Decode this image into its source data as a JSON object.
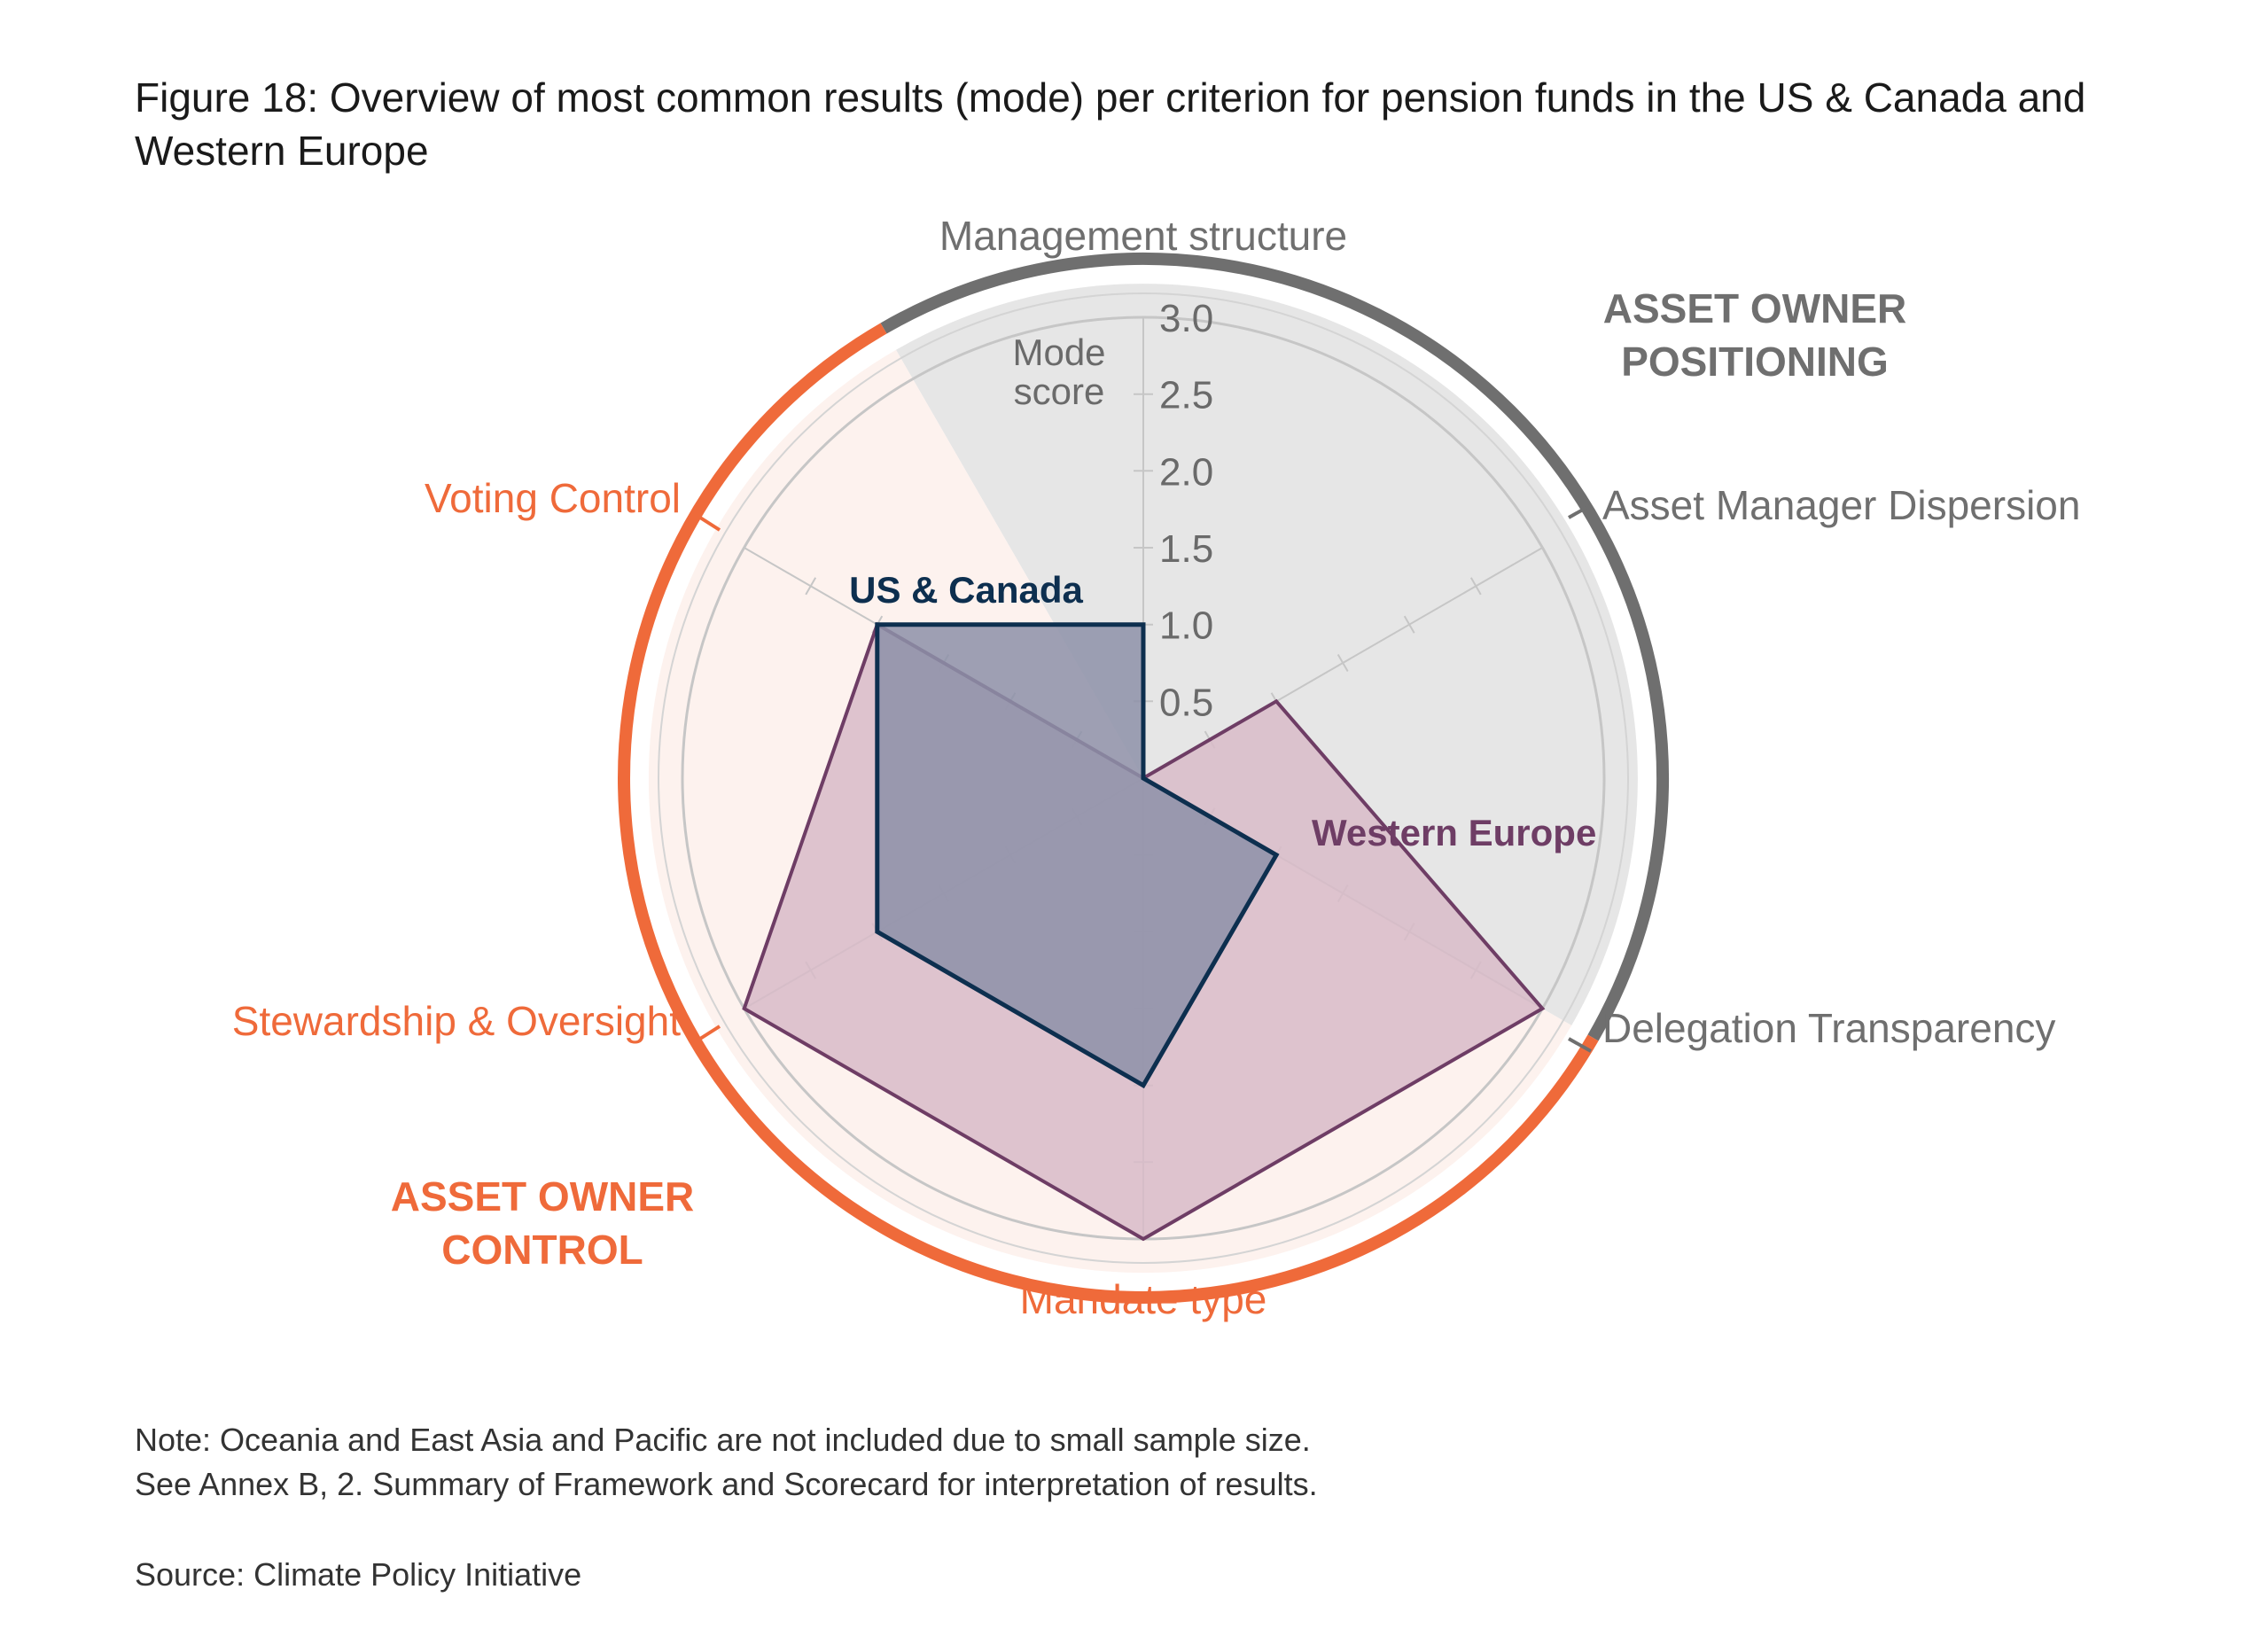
{
  "title": "Figure 18: Overview of most common results (mode) per criterion for pension funds in the US & Canada and Western Europe",
  "chart_data": {
    "type": "radar",
    "axis_title_line1": "Mode",
    "axis_title_line2": "score",
    "rlim": [
      0,
      3.0
    ],
    "ticks": [
      "0.5",
      "1.0",
      "1.5",
      "2.0",
      "2.5",
      "3.0"
    ],
    "tick_values": [
      0.5,
      1.0,
      1.5,
      2.0,
      2.5,
      3.0
    ],
    "categories": [
      "Management structure",
      "Asset Manager Dispersion",
      "Delegation Transparency",
      "Mandate type",
      "Stewardship & Oversight",
      "Voting Control"
    ],
    "series": [
      {
        "name": "Western Europe",
        "values": [
          0,
          1.0,
          3.0,
          3.0,
          3.0,
          2.0
        ]
      },
      {
        "name": "US & Canada",
        "values": [
          1.0,
          0,
          1.0,
          2.0,
          2.0,
          2.0
        ]
      }
    ],
    "groups": [
      {
        "line1": "ASSET OWNER",
        "line2": "POSITIONING",
        "categories": [
          "Management structure",
          "Asset Manager Dispersion",
          "Delegation Transparency"
        ]
      },
      {
        "line1": "ASSET OWNER",
        "line2": "CONTROL",
        "categories": [
          "Mandate type",
          "Stewardship & Oversight",
          "Voting Control"
        ]
      }
    ]
  },
  "colors": {
    "positioning_ring": "#6f6f6f",
    "positioning_fill": "#e6e6e6",
    "control_ring": "#ef6a3a",
    "control_fill": "#fdf2ee",
    "western_europe": "#6e3d65",
    "western_europe_fill": "#d8bbc8",
    "us_canada": "#0d2f4f",
    "us_canada_fill": "#8d90a8",
    "grid": "#c6c6c6"
  },
  "notes": {
    "line1": "Note: Oceania and East Asia and Pacific are not included due to small sample size.",
    "line2": "See Annex B, 2. Summary of Framework and Scorecard for interpretation of results.",
    "source": "Source: Climate Policy Initiative"
  }
}
